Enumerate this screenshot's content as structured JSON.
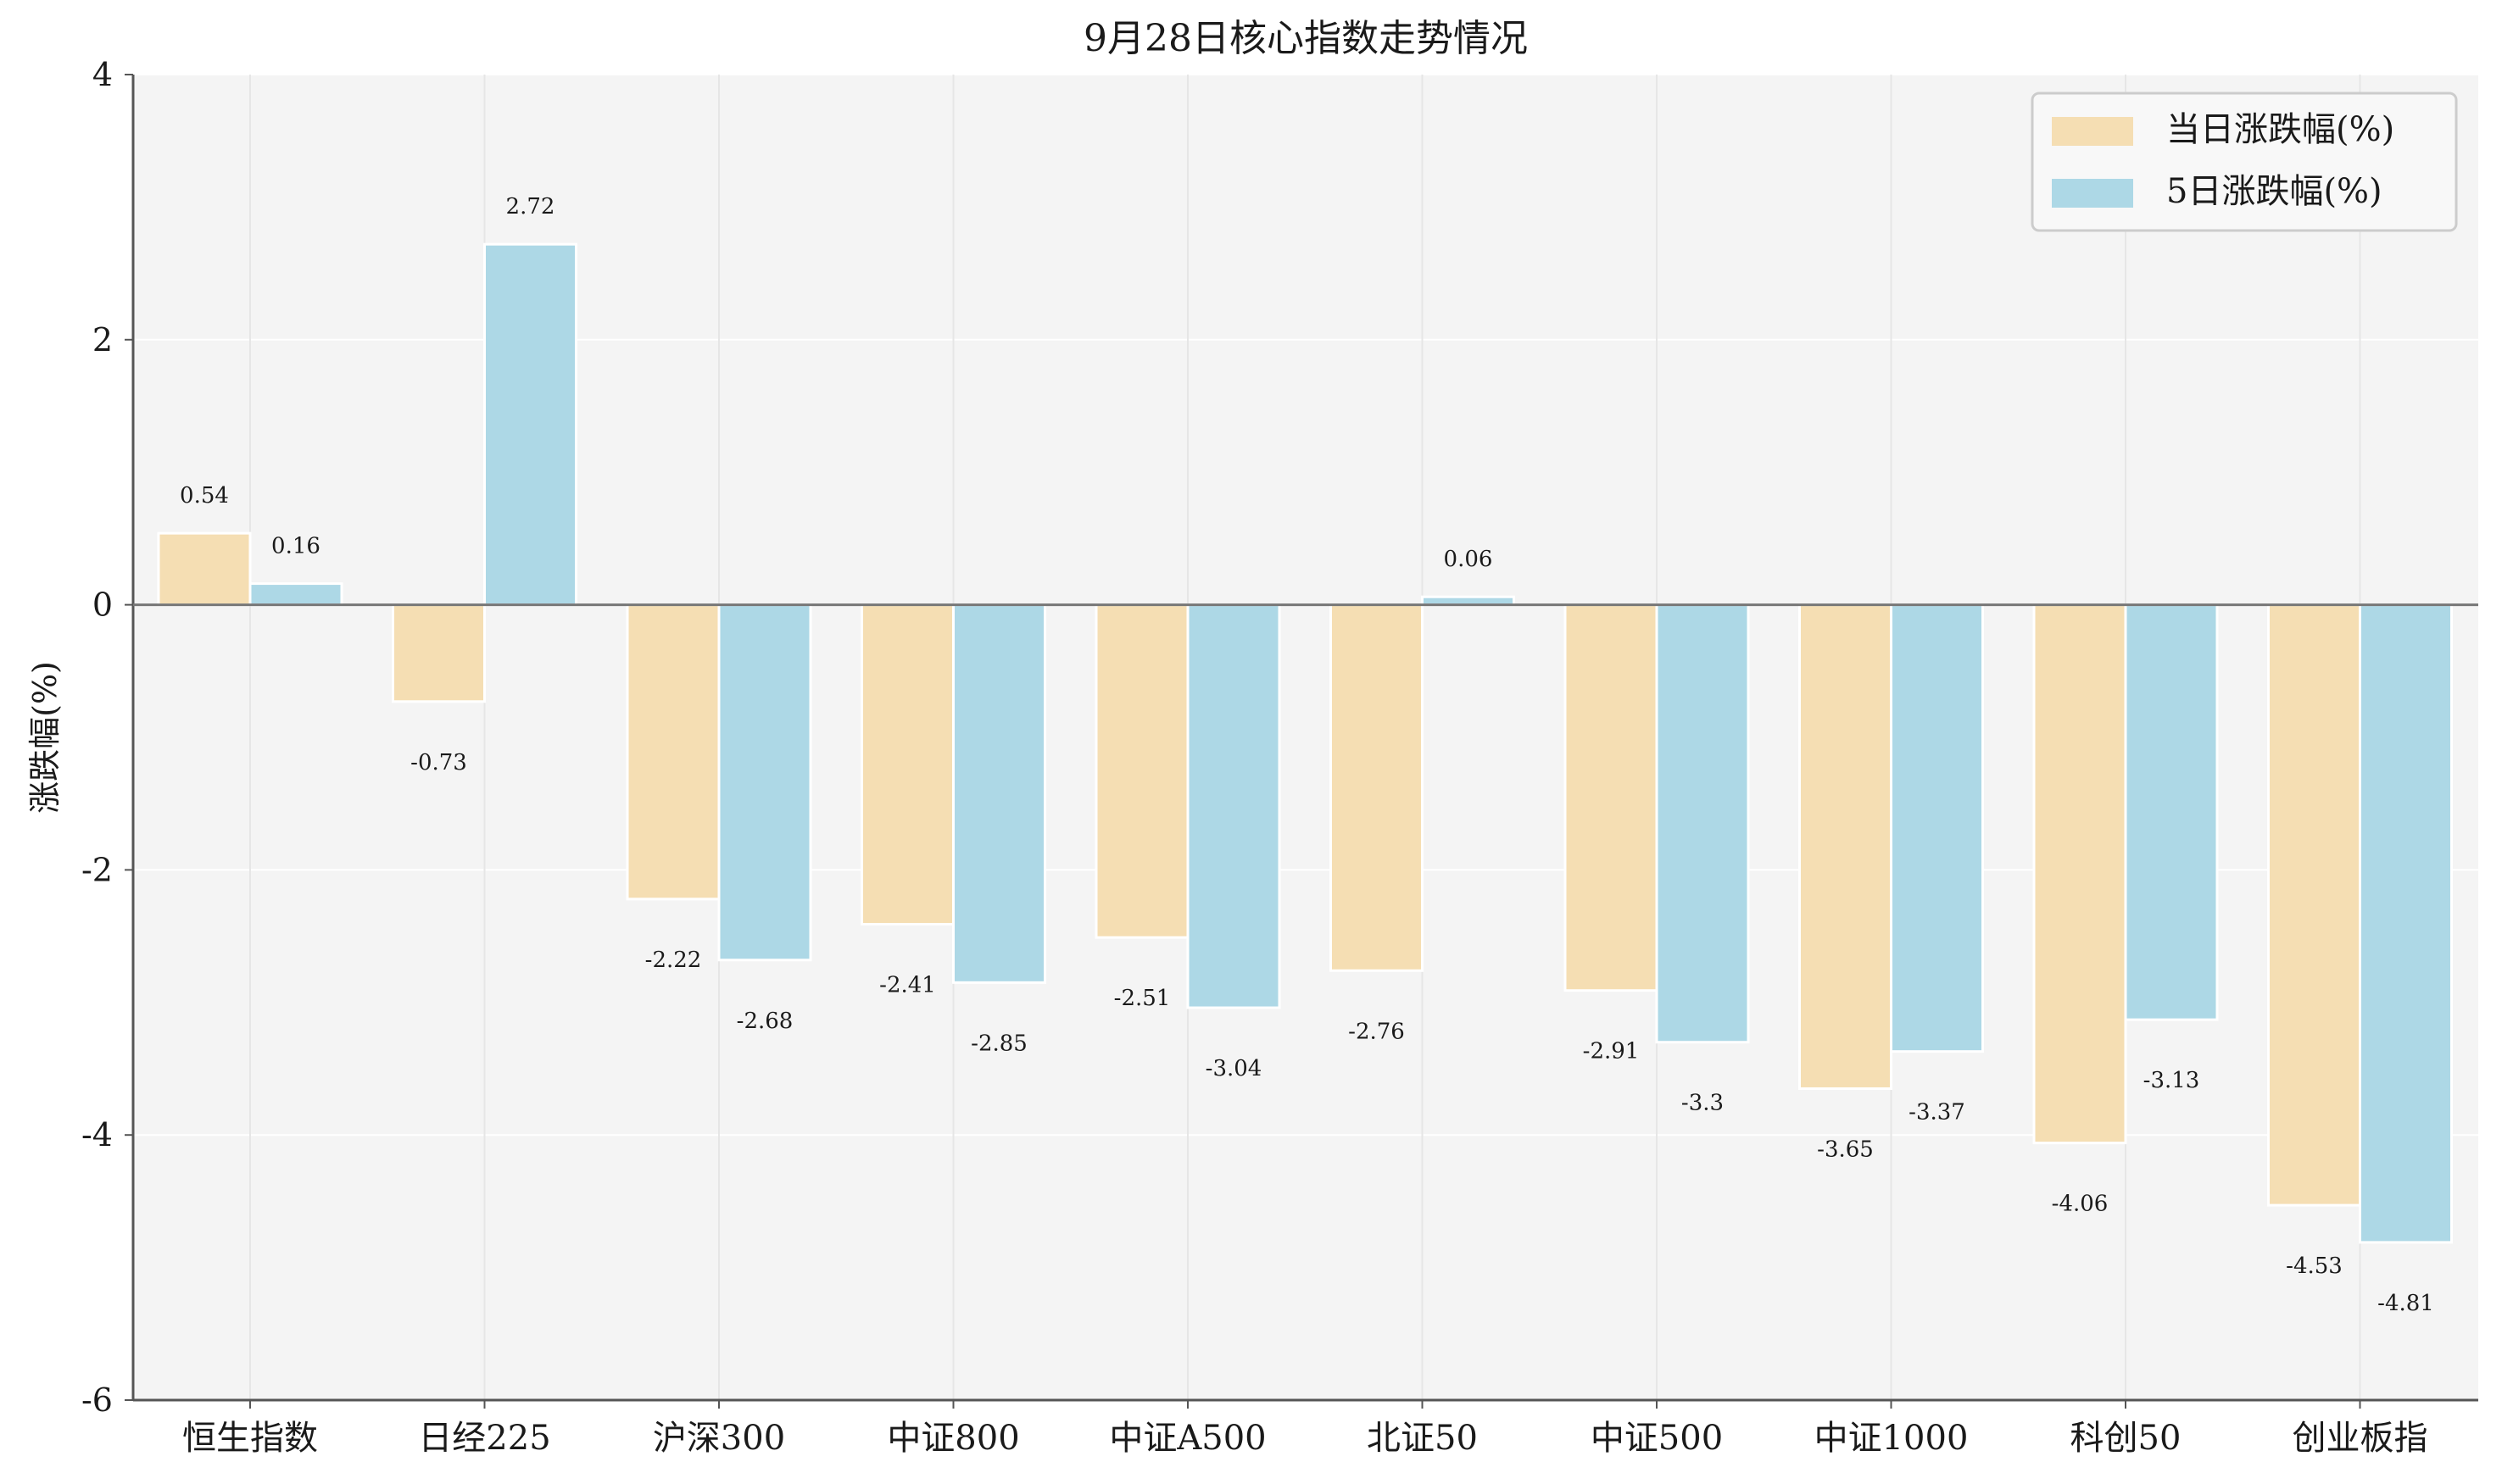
{
  "chart_data": {
    "type": "bar",
    "title": "9月28日核心指数走势情况",
    "xlabel": "",
    "ylabel": "涨跌幅(%)",
    "ylim": [
      -6,
      4
    ],
    "yticks": [
      4,
      2,
      0,
      -2,
      -4,
      -6
    ],
    "grid": true,
    "legend_position": "top-right",
    "categories": [
      "恒生指数",
      "日经225",
      "沪深300",
      "中证800",
      "中证A500",
      "北证50",
      "中证500",
      "中证1000",
      "科创50",
      "创业板指"
    ],
    "series": [
      {
        "name": "当日涨跌幅(%)",
        "color": "#f5deb3",
        "values": [
          0.54,
          -0.73,
          -2.22,
          -2.41,
          -2.51,
          -2.76,
          -2.91,
          -3.65,
          -4.06,
          -4.53
        ],
        "labels": [
          "0.54",
          "-0.73",
          "-2.22",
          "-2.41",
          "-2.51",
          "-2.76",
          "-2.91",
          "-3.65",
          "-4.06",
          "-4.53"
        ]
      },
      {
        "name": "5日涨跌幅(%)",
        "color": "#add8e6",
        "values": [
          0.16,
          2.72,
          -2.68,
          -2.85,
          -3.04,
          0.06,
          -3.3,
          -3.37,
          -3.13,
          -4.81
        ],
        "labels": [
          "0.16",
          "2.72",
          "-2.68",
          "-2.85",
          "-3.04",
          "0.06",
          "-3.3",
          "-3.37",
          "-3.13",
          "-4.81"
        ]
      }
    ]
  }
}
